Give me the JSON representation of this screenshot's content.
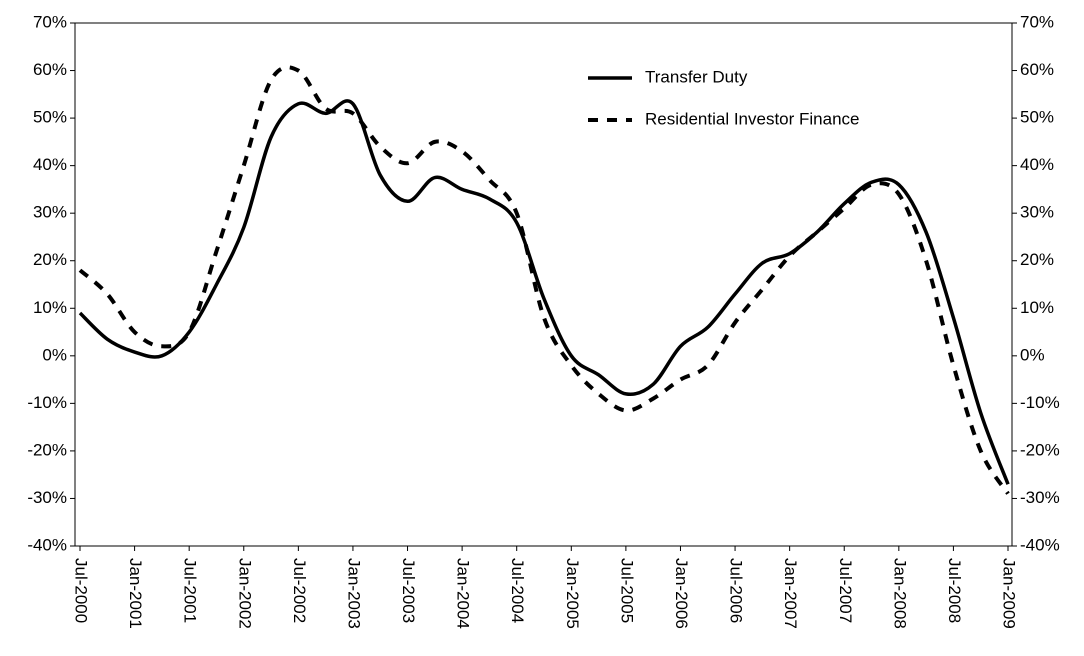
{
  "chart_data": {
    "type": "line",
    "categories": [
      "Jul-2000",
      null,
      "Jan-2001",
      null,
      "Jul-2001",
      null,
      "Jan-2002",
      null,
      "Jul-2002",
      null,
      "Jan-2003",
      null,
      "Jul-2003",
      null,
      "Jan-2004",
      null,
      "Jul-2004",
      null,
      "Jan-2005",
      null,
      "Jul-2005",
      null,
      "Jan-2006",
      null,
      "Jul-2006",
      null,
      "Jan-2007",
      null,
      "Jul-2007",
      null,
      "Jan-2008",
      null,
      "Jul-2008",
      null,
      "Jan-2009"
    ],
    "series": [
      {
        "name": "Transfer Duty",
        "color": "#000000",
        "line_style": "solid",
        "values": [
          9,
          3.5,
          0.8,
          0,
          5,
          15,
          27,
          46,
          53,
          51,
          53,
          38,
          32.5,
          37.5,
          35,
          33,
          28,
          12,
          0,
          -4,
          -8,
          -6,
          2,
          6,
          13,
          19.5,
          21.5,
          26,
          32,
          36.5,
          36,
          26,
          8,
          -12,
          -27
        ]
      },
      {
        "name": "Residential Investor Finance",
        "color": "#000000",
        "line_style": "dashed",
        "values": [
          18,
          13,
          5,
          2,
          5,
          22,
          40,
          58,
          60,
          52,
          51,
          44,
          40.5,
          45,
          43,
          37,
          30,
          8,
          -2,
          -8,
          -11.5,
          -9,
          -5,
          -2,
          7,
          14,
          21,
          26,
          31,
          36,
          34,
          20,
          -2,
          -20,
          -29
        ]
      }
    ],
    "ylim": [
      -40,
      70
    ],
    "yticks": [
      {
        "value": -40,
        "label": "-40%"
      },
      {
        "value": -30,
        "label": "-30%"
      },
      {
        "value": -20,
        "label": "-20%"
      },
      {
        "value": -10,
        "label": "-10%"
      },
      {
        "value": 0,
        "label": "0%"
      },
      {
        "value": 10,
        "label": "10%"
      },
      {
        "value": 20,
        "label": "20%"
      },
      {
        "value": 30,
        "label": "30%"
      },
      {
        "value": 40,
        "label": "40%"
      },
      {
        "value": 50,
        "label": "50%"
      },
      {
        "value": 60,
        "label": "60%"
      },
      {
        "value": 70,
        "label": "70%"
      }
    ],
    "y2lim": [
      -40,
      70
    ],
    "y2ticks": [
      {
        "value": -40,
        "label": "-40%"
      },
      {
        "value": -30,
        "label": "-30%"
      },
      {
        "value": -20,
        "label": "-20%"
      },
      {
        "value": -10,
        "label": "-10%"
      },
      {
        "value": 0,
        "label": "0%"
      },
      {
        "value": 10,
        "label": "10%"
      },
      {
        "value": 20,
        "label": "20%"
      },
      {
        "value": 30,
        "label": "30%"
      },
      {
        "value": 40,
        "label": "40%"
      },
      {
        "value": 50,
        "label": "50%"
      },
      {
        "value": 60,
        "label": "60%"
      },
      {
        "value": 70,
        "label": "70%"
      }
    ],
    "grid": false,
    "legend": "upper right"
  }
}
